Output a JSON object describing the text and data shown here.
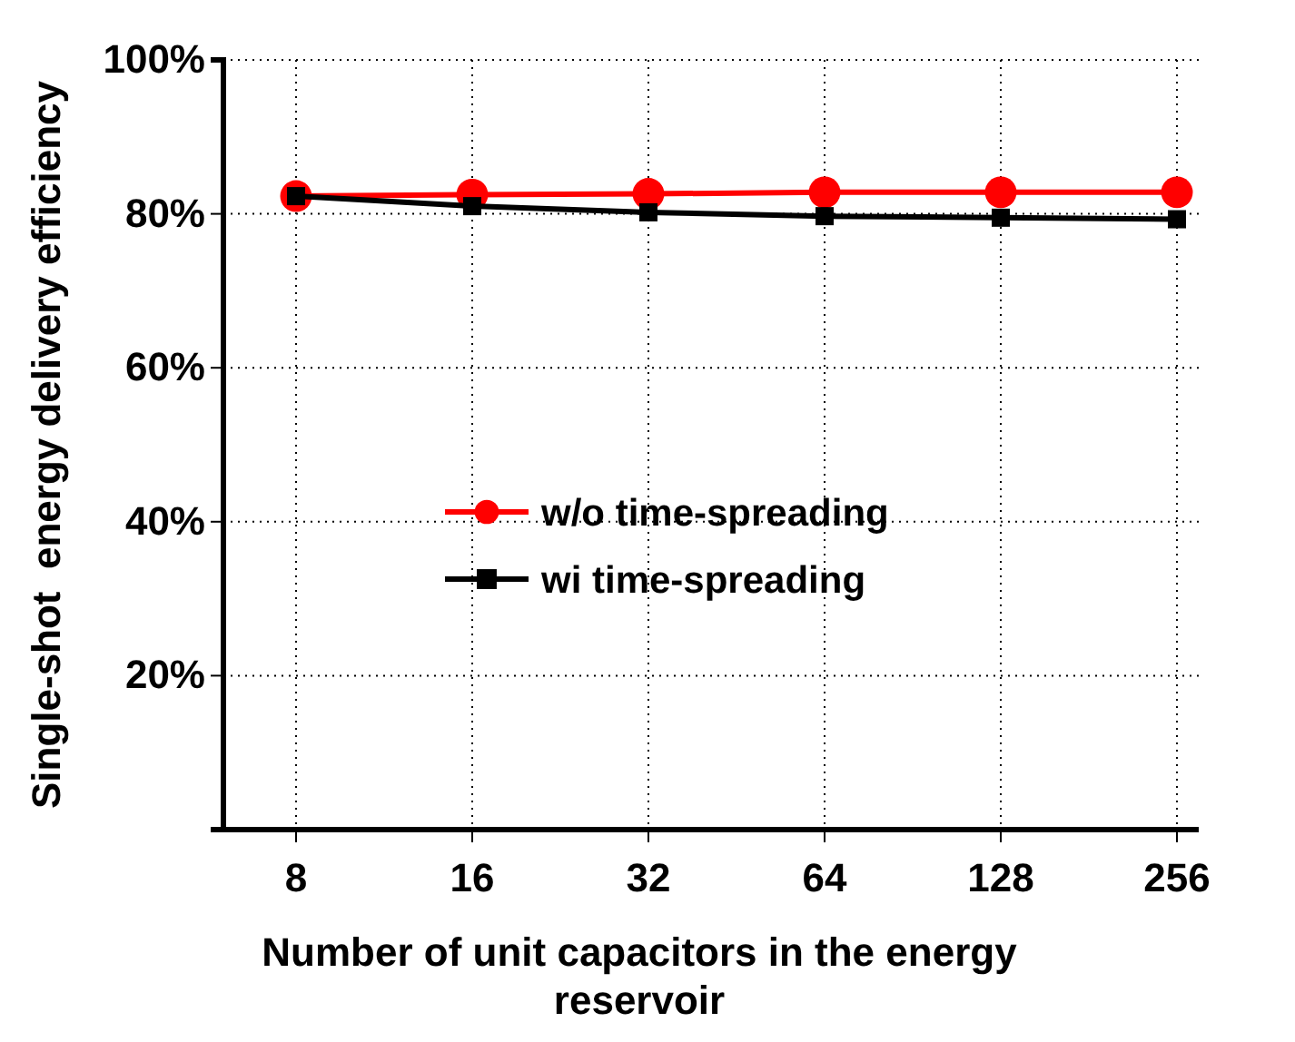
{
  "chart_data": {
    "type": "line",
    "xlabel": "Number of unit capacitors in the energy reservoir",
    "ylabel": "Single-shot  energy delivery efficiency",
    "categories": [
      "8",
      "16",
      "32",
      "64",
      "128",
      "256"
    ],
    "series": [
      {
        "name": "w/o time-spreading",
        "color": "#ff0000",
        "marker": "circle",
        "values": [
          82.3,
          82.5,
          82.6,
          82.8,
          82.8,
          82.8
        ]
      },
      {
        "name": "wi time-spreading",
        "color": "#000000",
        "marker": "square",
        "values": [
          82.3,
          81.0,
          80.2,
          79.7,
          79.5,
          79.3
        ]
      }
    ],
    "ylim": [
      0,
      100
    ],
    "yticks": [
      {
        "value": 0,
        "label": null
      },
      {
        "value": 20,
        "label": "20%"
      },
      {
        "value": 40,
        "label": "40%"
      },
      {
        "value": 60,
        "label": "60%"
      },
      {
        "value": 80,
        "label": "80%"
      },
      {
        "value": 100,
        "label": "100%"
      }
    ],
    "grid": true,
    "legend": "center",
    "line_style": "solid"
  }
}
